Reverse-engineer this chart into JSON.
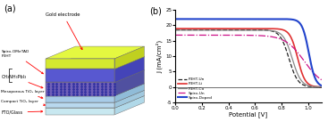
{
  "ylabel": "J (mA/cm²)",
  "xlabel": "Potential [V]",
  "xlim": [
    0,
    1.1
  ],
  "ylim": [
    -5,
    25
  ],
  "yticks": [
    -5,
    0,
    5,
    10,
    15,
    20,
    25
  ],
  "xticks": [
    0.0,
    0.2,
    0.4,
    0.6,
    0.8,
    1.0
  ],
  "layers": [
    {
      "label": "FTO/Glass",
      "face_color": "#c8e8f0",
      "top_color": "#ddf0f8",
      "side_color": "#b0d8e8"
    },
    {
      "label": "Compact TiO₂ layer",
      "face_color": "#b8d8ee",
      "top_color": "#cce8f8",
      "side_color": "#a0c8de"
    },
    {
      "label": "Mesoporous TiO₂ layer",
      "face_color": "#a8cce8",
      "top_color": "#c0dff8",
      "side_color": "#90bcd8"
    },
    {
      "label": "CH₃NH₃PbI₃",
      "face_color": "#7060b8",
      "top_color": "#8878cc",
      "side_color": "#5050a0"
    },
    {
      "label": "Spiro-OMeTAD\nP3HT",
      "face_color": "#5858d0",
      "top_color": "#6868e0",
      "side_color": "#4444b8"
    },
    {
      "label": "Gold electrode",
      "face_color": "#d4e830",
      "top_color": "#e4f840",
      "side_color": "#c0d020"
    }
  ],
  "series": [
    {
      "label": "P3HT-Un",
      "color": "#222222",
      "linestyle": "dashed",
      "linewidth": 0.9,
      "Jsc": 18.5,
      "Voc": 0.855,
      "k": 30
    },
    {
      "label": "P3HT-Li",
      "color": "#e03030",
      "linestyle": "solid",
      "linewidth": 1.2,
      "Jsc": 18.9,
      "Voc": 0.92,
      "k": 35
    },
    {
      "label": "P3HT-Co",
      "color": "#888888",
      "linestyle": "solid",
      "linewidth": 0.9,
      "Jsc": 18.4,
      "Voc": 0.88,
      "k": 30
    },
    {
      "label": "Spiro-Un",
      "color": "#cc1188",
      "linestyle": "dashdot",
      "linewidth": 0.9,
      "Jsc": 16.8,
      "Voc": 0.97,
      "k": 14
    },
    {
      "label": "Spiro-Doped",
      "color": "#2244cc",
      "linestyle": "solid",
      "linewidth": 1.5,
      "Jsc": 22.0,
      "Voc": 1.005,
      "k": 40
    }
  ]
}
